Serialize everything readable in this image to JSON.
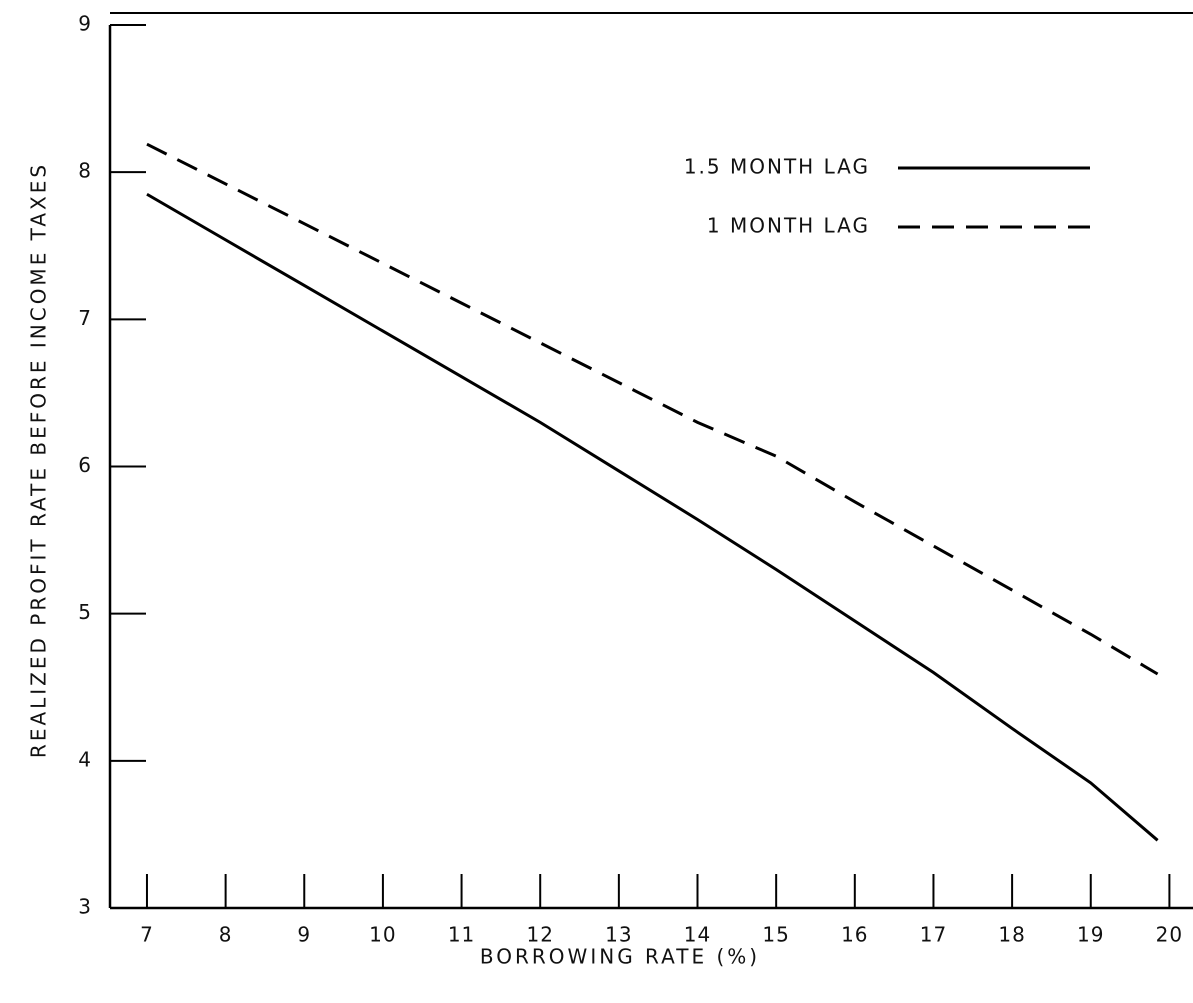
{
  "chart_data": {
    "type": "line",
    "xlabel": "BORROWING RATE (%)",
    "ylabel": "REALIZED PROFIT RATE BEFORE INCOME TAXES",
    "x": [
      7,
      8,
      9,
      10,
      11,
      12,
      13,
      14,
      15,
      16,
      17,
      18,
      19,
      19.85
    ],
    "series": [
      {
        "name": "1.5 MONTH LAG",
        "color": "#000000",
        "line_style": "solid",
        "values": [
          7.85,
          7.54,
          7.23,
          6.92,
          6.61,
          6.3,
          5.97,
          5.64,
          5.3,
          4.95,
          4.6,
          4.22,
          3.85,
          3.46
        ]
      },
      {
        "name": "1 MONTH LAG",
        "color": "#000000",
        "line_style": "dashed",
        "values": [
          8.19,
          7.92,
          7.65,
          7.38,
          7.11,
          6.84,
          6.57,
          6.3,
          6.07,
          5.76,
          5.46,
          5.16,
          4.86,
          4.59
        ]
      }
    ],
    "xlim": [
      6.53,
      20.3
    ],
    "xticks": [
      7,
      8,
      9,
      10,
      11,
      12,
      13,
      14,
      15,
      16,
      17,
      18,
      19,
      20
    ],
    "ylim": [
      3,
      9
    ],
    "yticks": [
      3,
      4,
      5,
      6,
      7,
      8,
      9
    ],
    "legend": "upper right",
    "grid": false
  }
}
